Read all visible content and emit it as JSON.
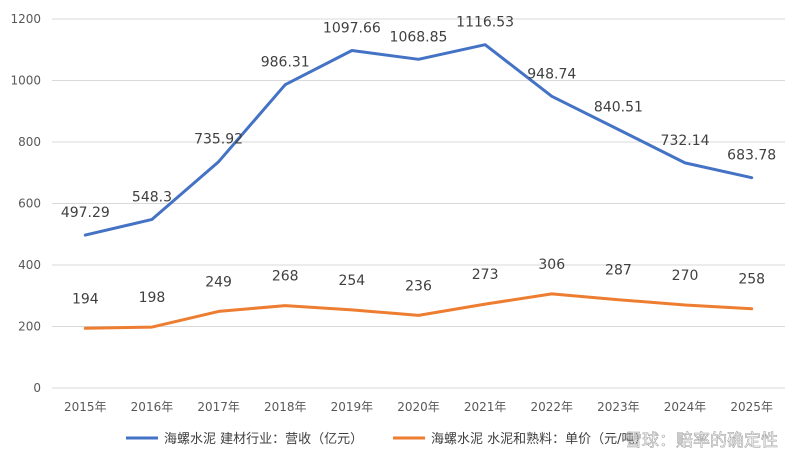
{
  "chart_data": {
    "type": "line",
    "categories": [
      "2015年",
      "2016年",
      "2017年",
      "2018年",
      "2019年",
      "2020年",
      "2021年",
      "2022年",
      "2023年",
      "2024年",
      "2025年"
    ],
    "ylim": [
      0,
      1200
    ],
    "yticks": [
      0,
      200,
      400,
      600,
      800,
      1000,
      1200
    ],
    "grid": true,
    "legend_position": "bottom",
    "series": [
      {
        "name": "海螺水泥 建材行业：营收（亿元）",
        "color": "#4472C4",
        "values": [
          497.29,
          548.3,
          735.92,
          986.31,
          1097.66,
          1068.85,
          1116.53,
          948.74,
          840.51,
          732.14,
          683.78
        ],
        "labels": [
          "497.29",
          "548.3",
          "735.92",
          "986.31",
          "1097.66",
          "1068.85",
          "1116.53",
          "948.74",
          "840.51",
          "732.14",
          "683.78"
        ]
      },
      {
        "name": "海螺水泥 水泥和熟料：单价（元/吨）",
        "color": "#ED7D31",
        "values": [
          194,
          198,
          249,
          268,
          254,
          236,
          273,
          306,
          287,
          270,
          258
        ],
        "labels": [
          "194",
          "198",
          "249",
          "268",
          "254",
          "236",
          "273",
          "306",
          "287",
          "270",
          "258"
        ]
      }
    ]
  },
  "watermark": "雪球：赔率的确定性"
}
